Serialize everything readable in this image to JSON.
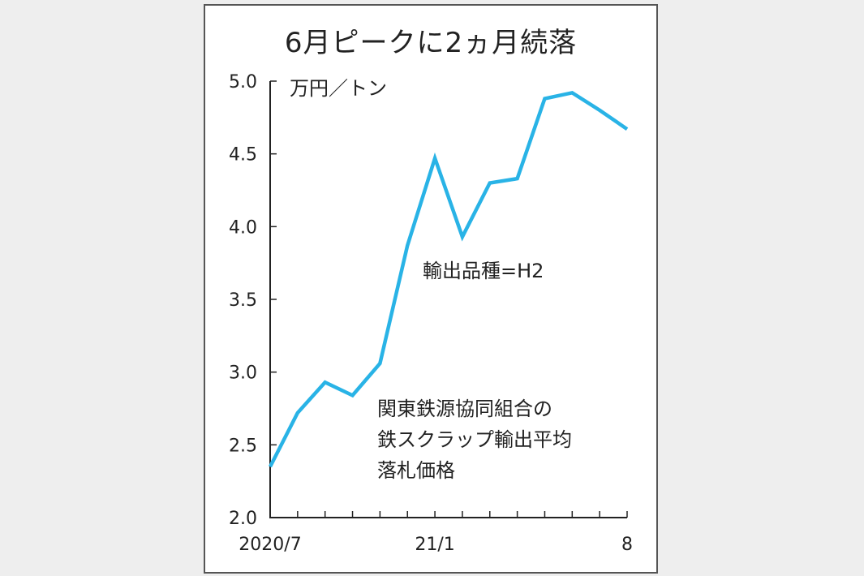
{
  "chart_data": {
    "type": "line",
    "title": "6月ピークに2ヵ月続落",
    "ylabel": "万円／トン",
    "ylim": [
      2.0,
      5.0
    ],
    "yticks": [
      "5.0",
      "4.5",
      "4.0",
      "3.5",
      "3.0",
      "2.5",
      "2.0"
    ],
    "xtick_labels": [
      {
        "index": 0,
        "label": "2020/7"
      },
      {
        "index": 6,
        "label": "21/1"
      },
      {
        "index": 13,
        "label": "8"
      }
    ],
    "x": [
      "2020/7",
      "2020/8",
      "2020/9",
      "2020/10",
      "2020/11",
      "2020/12",
      "2021/1",
      "2021/2",
      "2021/3",
      "2021/4",
      "2021/5",
      "2021/6",
      "2021/7",
      "2021/8"
    ],
    "series": [
      {
        "values": [
          2.35,
          2.72,
          2.93,
          2.84,
          3.06,
          3.87,
          4.47,
          3.93,
          4.3,
          4.33,
          4.88,
          4.92,
          4.8,
          4.67
        ],
        "color": "#29b3e6"
      }
    ],
    "grid": false,
    "annotations": [
      "輸出品種=H2",
      "関東鉄源協同組合の\n鉄スクラップ輸出平均\n落札価格"
    ]
  }
}
